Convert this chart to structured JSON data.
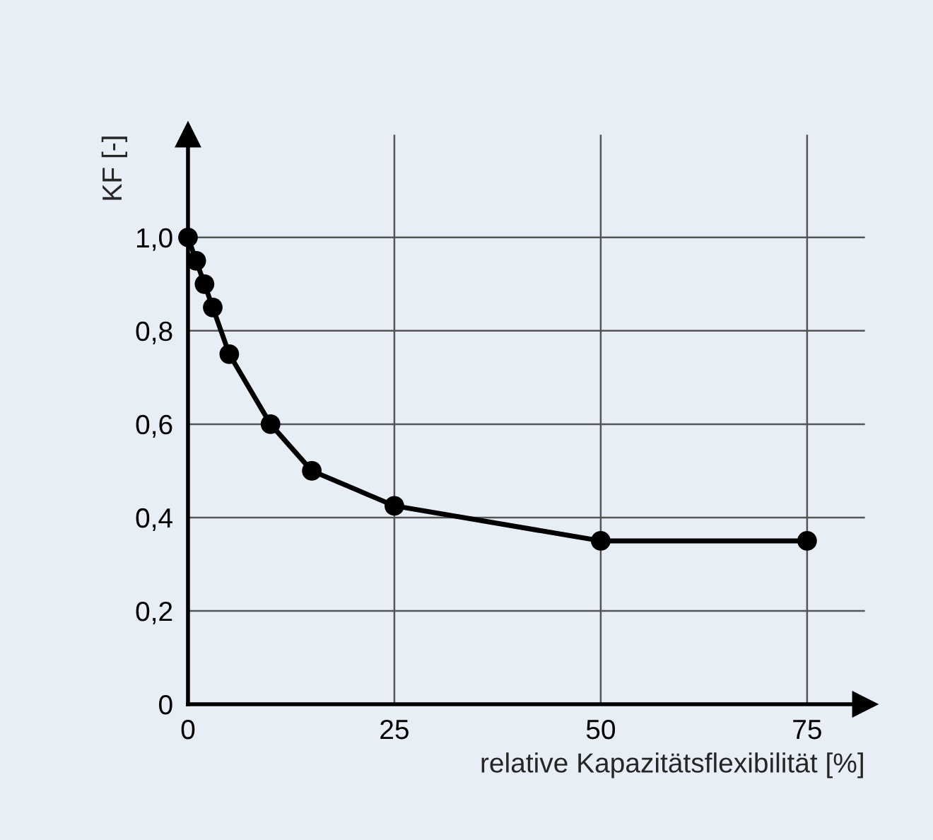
{
  "chart_data": {
    "type": "line",
    "xlabel": "relative Kapazitätsflexibilität [%]",
    "ylabel": "KF [-]",
    "x": [
      0,
      1,
      2,
      3,
      5,
      10,
      15,
      25,
      50,
      75
    ],
    "series": [
      {
        "color": "#000000",
        "values": [
          1.0,
          0.95,
          0.9,
          0.85,
          0.75,
          0.6,
          0.5,
          0.425,
          0.35,
          0.35
        ]
      }
    ],
    "xlim": [
      0,
      82
    ],
    "ylim": [
      0,
      1.22
    ],
    "xticks": [
      0,
      25,
      50,
      75
    ],
    "yticks": [
      {
        "value": 0,
        "label": "0"
      },
      {
        "value": 0.2,
        "label": "0,2"
      },
      {
        "value": 0.4,
        "label": "0,4"
      },
      {
        "value": 0.6,
        "label": "0,6"
      },
      {
        "value": 0.8,
        "label": "0,8"
      },
      {
        "value": 1.0,
        "label": "1,0"
      }
    ],
    "grid": true,
    "marker": "circle",
    "line_style": "solid"
  }
}
